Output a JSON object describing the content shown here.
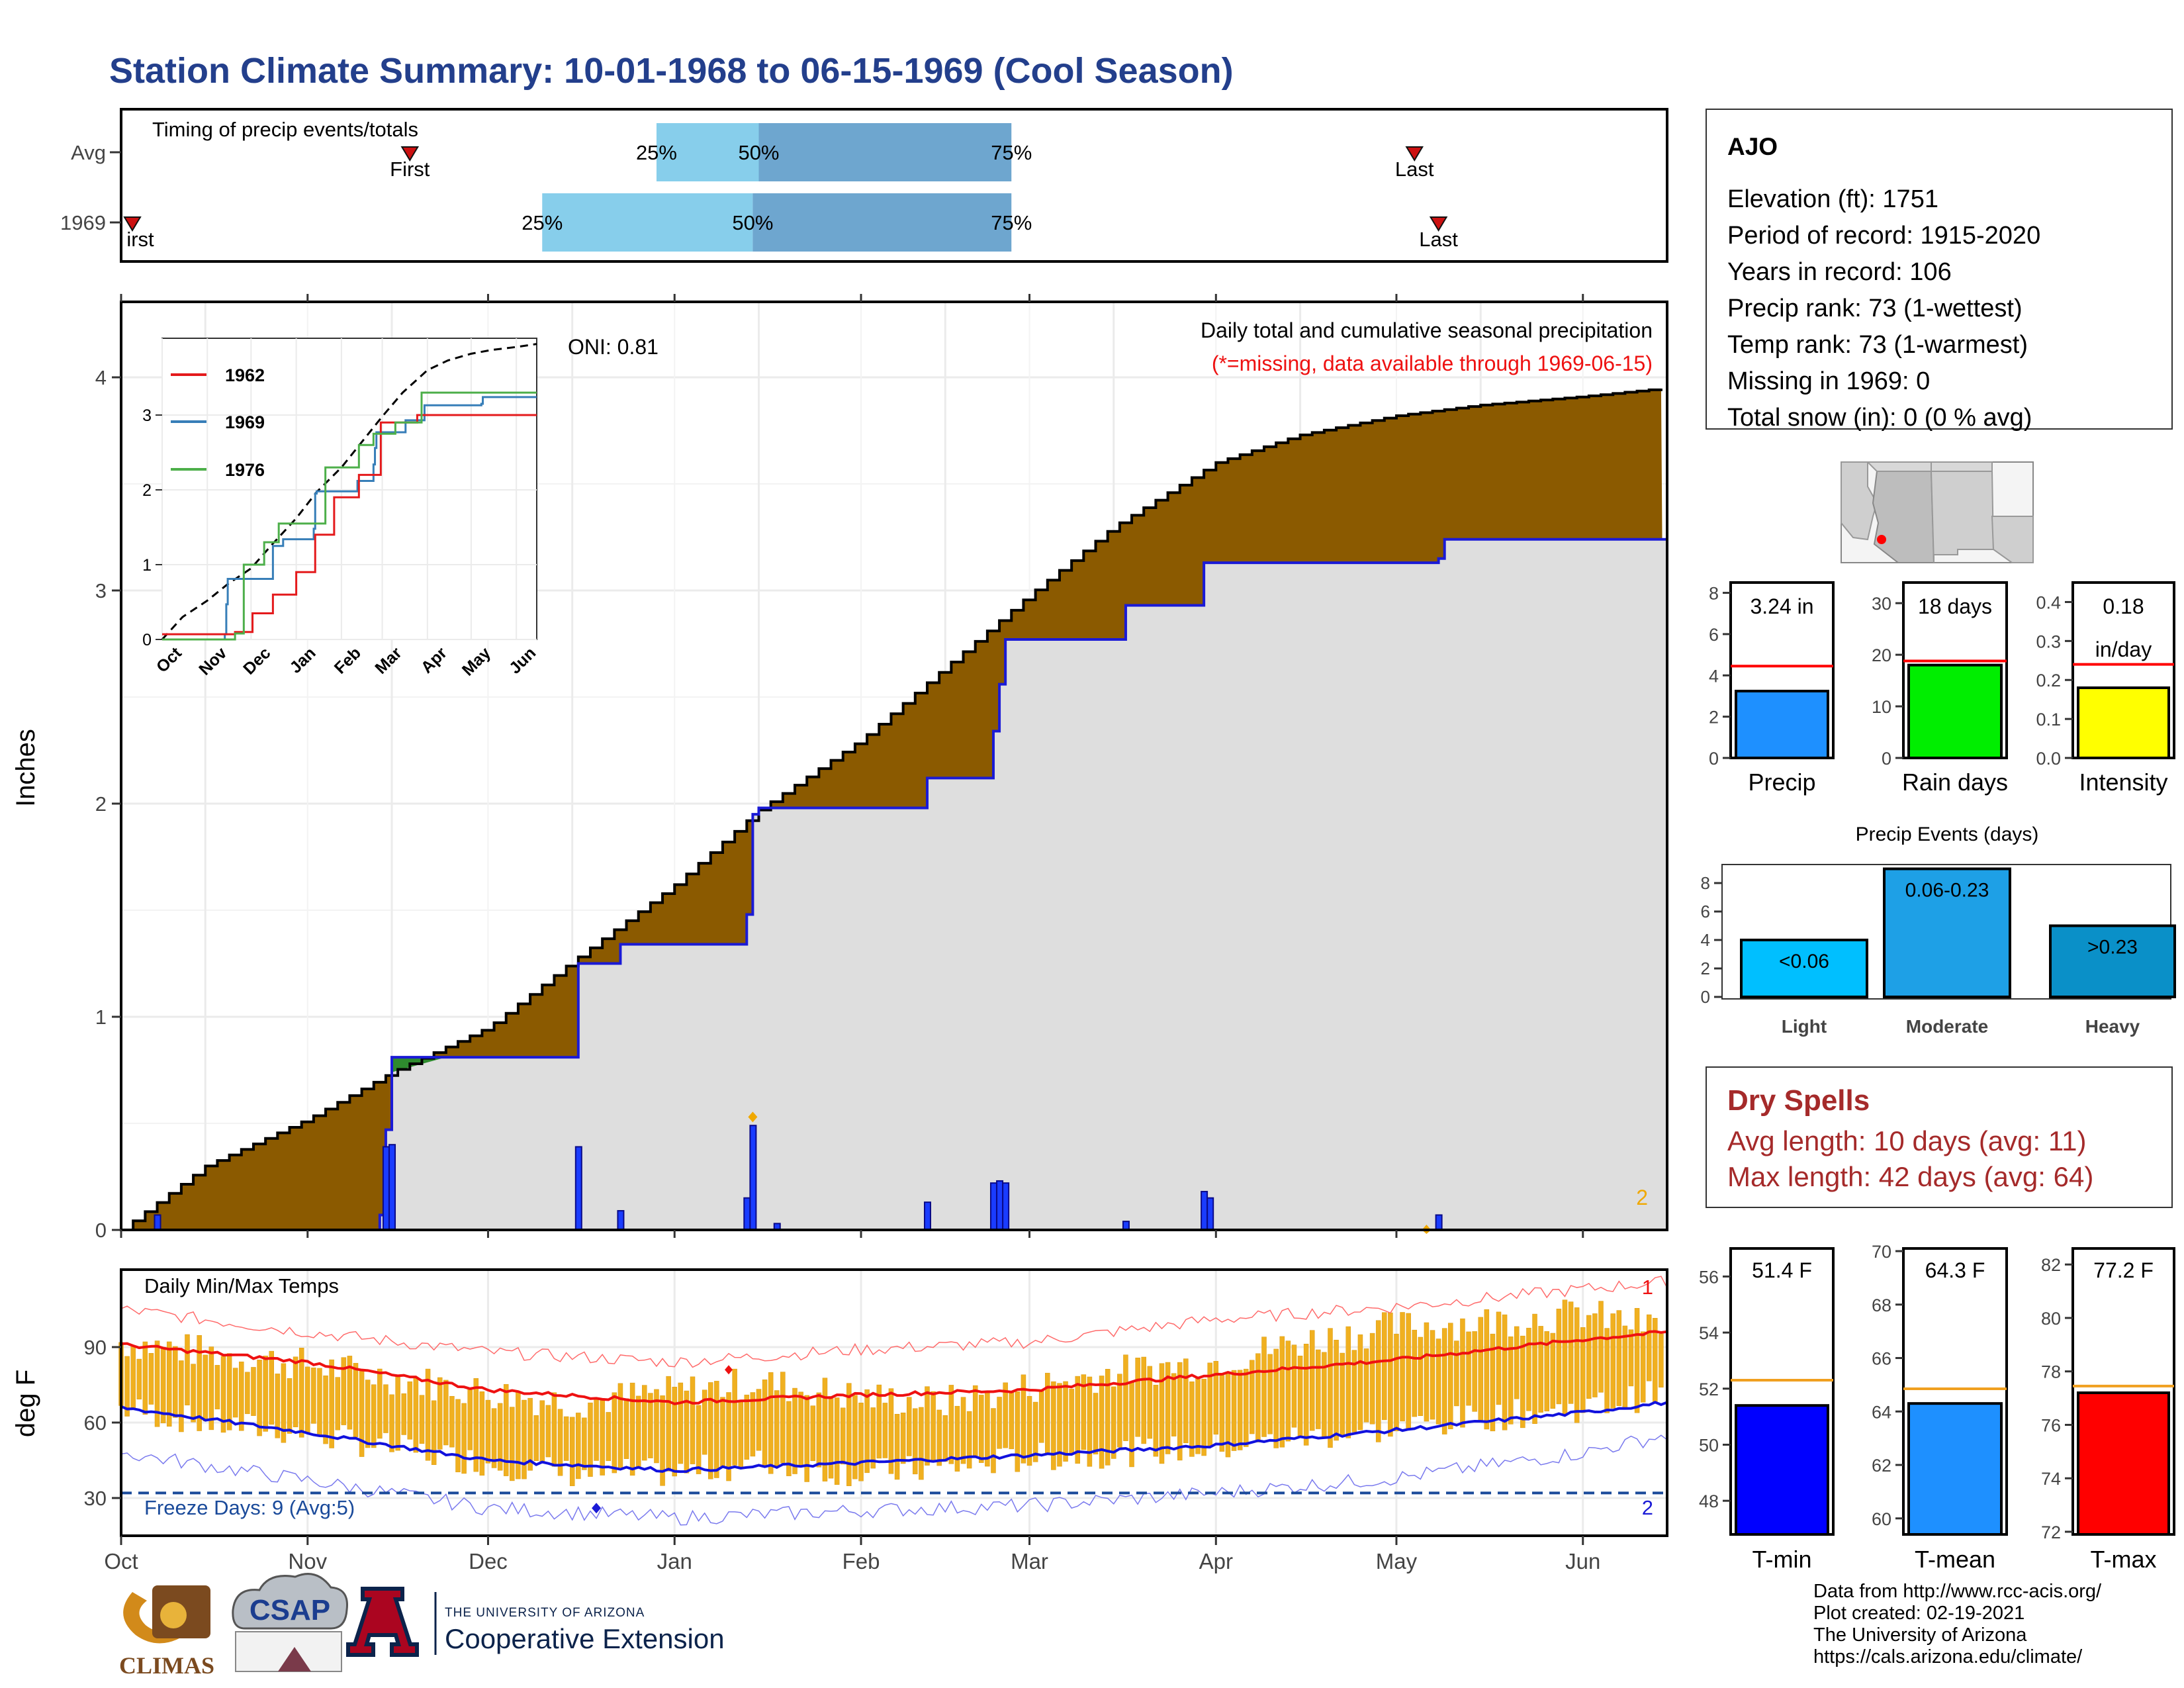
{
  "title": "Station Climate Summary: 10-01-1968 to 06-15-1969 (Cool Season)",
  "colors": {
    "title": "#233f8c",
    "brown": "#8b5a00",
    "grey_fill": "#dedede",
    "blue_line": "#1a1ad6",
    "bar_blue": "#1a3cff",
    "light_blue": "#87ceeb",
    "steel_blue": "#6ea6cf",
    "orange": "#f0a800",
    "red": "#ee1111",
    "dry_red": "#a52a2a",
    "green": "#2e8b2e"
  },
  "timing": {
    "title": "Timing of precip events/totals",
    "rows": [
      {
        "label": "Avg",
        "first_date": "1968-11-18",
        "first_label": "First",
        "p25_date": "1968-12-29",
        "p50_date": "1969-01-15",
        "p75_date": "1969-02-26",
        "last_date": "1969-05-04",
        "last_label": "Last",
        "p25": "25%",
        "p50": "50%",
        "p75": "75%"
      },
      {
        "label": "1969",
        "first_date": "1968-10-01",
        "first_label": "irst",
        "p25_date": "1968-12-10",
        "p50_date": "1969-01-14",
        "p75_date": "1969-02-26",
        "last_date": "1969-05-08",
        "last_label": "Last",
        "p25": "25%",
        "p50": "50%",
        "p75": "75%"
      }
    ]
  },
  "info": {
    "station": "AJO",
    "lines": [
      "Elevation (ft): 1751",
      "Period of record: 1915-2020",
      "Years in record: 106",
      "Precip rank: 73 (1-wettest)",
      "Temp rank: 73 (1-warmest)",
      "Missing in 1969: 0",
      "Total snow (in): 0 (0 % avg)"
    ]
  },
  "precip_panel": {
    "ylabel": "Inches",
    "oni": "ONI: 0.81",
    "caption": "Daily total and cumulative seasonal precipitation",
    "missing_note": "(*=missing, data available through 1969-06-15)",
    "corner_count": "2",
    "y_ticks": [
      "0",
      "1",
      "2",
      "3",
      "4"
    ],
    "x_ticks": [
      "Oct",
      "Nov",
      "Dec",
      "Jan",
      "Feb",
      "Mar",
      "Apr",
      "May",
      "Jun"
    ]
  },
  "inset": {
    "legend": [
      "1962",
      "1969",
      "1976"
    ],
    "y_ticks": [
      "0",
      "1",
      "2",
      "3"
    ],
    "x_ticks": [
      "Oct",
      "Nov",
      "Dec",
      "Jan",
      "Feb",
      "Mar",
      "Apr",
      "May",
      "Jun"
    ]
  },
  "mini_bars": [
    {
      "label": "Precip",
      "value_text": "3.24 in",
      "value": 3.24,
      "avg": 4.45,
      "max": 8.5,
      "ticks": [
        "0",
        "2",
        "4",
        "6",
        "8"
      ],
      "color": "#1e90ff"
    },
    {
      "label": "Rain days",
      "value_text": "18 days",
      "value": 18,
      "avg": 18.8,
      "max": 34,
      "ticks": [
        "0",
        "10",
        "20",
        "30"
      ],
      "color": "#00ee00"
    },
    {
      "label": "Intensity",
      "value_text": "0.18",
      "value_text2": "in/day",
      "value": 0.18,
      "avg": 0.24,
      "max": 0.45,
      "ticks": [
        "0.0",
        "0.1",
        "0.2",
        "0.3",
        "0.4"
      ],
      "color": "#ffff00"
    }
  ],
  "events": {
    "title": "Precip Events (days)",
    "ticks": [
      "0",
      "2",
      "4",
      "6",
      "8"
    ],
    "bars": [
      {
        "category": "Light",
        "label": "<0.06",
        "value": 4,
        "color": "#00bfff"
      },
      {
        "category": "Moderate",
        "label": "0.06-0.23",
        "value": 9,
        "color": "#1ea0e6"
      },
      {
        "category": "Heavy",
        "label": ">0.23",
        "value": 5,
        "color": "#0a90c8"
      }
    ]
  },
  "dry_spells": {
    "title": "Dry Spells",
    "avg_line": "Avg length: 10 days (avg: 11)",
    "max_line": "Max length: 42 days (avg: 64)"
  },
  "temp_panel": {
    "title": "Daily Min/Max Temps",
    "ylabel": "deg F",
    "y_ticks": [
      "30",
      "60",
      "90"
    ],
    "freeze_label": "Freeze Days: 9 (Avg:5)",
    "count_top": "1",
    "count_bottom": "2",
    "x_ticks": [
      "Oct",
      "Nov",
      "Dec",
      "Jan",
      "Feb",
      "Mar",
      "Apr",
      "May",
      "Jun"
    ]
  },
  "temp_bars": [
    {
      "label": "T-min",
      "value_text": "51.4 F",
      "value": 51.4,
      "avg": 52.3,
      "min": 46.8,
      "max": 57.0,
      "ticks": [
        "48",
        "50",
        "52",
        "54",
        "56"
      ],
      "color": "#0000ff"
    },
    {
      "label": "T-mean",
      "value_text": "64.3 F",
      "value": 64.3,
      "avg": 64.85,
      "min": 59.4,
      "max": 70.1,
      "ticks": [
        "60",
        "62",
        "64",
        "66",
        "68",
        "70"
      ],
      "color": "#1e90ff"
    },
    {
      "label": "T-max",
      "value_text": "77.2 F",
      "value": 77.2,
      "avg": 77.45,
      "min": 71.9,
      "max": 82.6,
      "ticks": [
        "72",
        "74",
        "76",
        "78",
        "80",
        "82"
      ],
      "color": "#ff0000"
    }
  ],
  "chart_data": [
    {
      "type": "area",
      "title": "Daily total and cumulative seasonal precipitation",
      "ylabel": "Inches",
      "ylim": [
        0,
        4.3
      ],
      "series": [
        {
          "name": "1969",
          "x": [
            "1968-10-01",
            "1968-10-07",
            "1968-11-13",
            "1968-11-14",
            "1968-11-15",
            "1968-12-15",
            "1968-12-16",
            "1968-12-22",
            "1968-12-23",
            "1969-01-12",
            "1969-01-13",
            "1969-01-14",
            "1969-01-15",
            "1969-02-11",
            "1969-02-12",
            "1969-02-22",
            "1969-02-23",
            "1969-02-24",
            "1969-02-25",
            "1969-03-16",
            "1969-03-17",
            "1969-03-29",
            "1969-03-30",
            "1969-05-08",
            "1969-05-09",
            "1969-06-15"
          ],
          "values": [
            0.0,
            0.0,
            0.07,
            0.47,
            0.81,
            0.81,
            1.25,
            1.25,
            1.34,
            1.34,
            1.48,
            1.95,
            1.98,
            1.98,
            2.12,
            2.12,
            2.34,
            2.56,
            2.77,
            2.77,
            2.93,
            2.93,
            3.13,
            3.15,
            3.24,
            3.24
          ]
        },
        {
          "name": "Avg",
          "x": [
            "1968-10-01",
            "1968-10-15",
            "1968-11-01",
            "1968-11-15",
            "1968-12-01",
            "1968-12-15",
            "1969-01-01",
            "1969-01-15",
            "1969-02-01",
            "1969-02-15",
            "1969-03-01",
            "1969-03-15",
            "1969-04-01",
            "1969-04-15",
            "1969-05-01",
            "1969-05-15",
            "1969-06-01",
            "1969-06-15"
          ],
          "values": [
            0.0,
            0.3,
            0.52,
            0.74,
            0.95,
            1.26,
            1.62,
            1.97,
            2.3,
            2.64,
            2.98,
            3.3,
            3.6,
            3.73,
            3.82,
            3.87,
            3.91,
            3.95
          ]
        }
      ],
      "daily_bars": [
        {
          "date": "1968-10-07",
          "value": 0.07
        },
        {
          "date": "1968-11-14",
          "value": 0.39
        },
        {
          "date": "1968-11-15",
          "value": 0.4
        },
        {
          "date": "1968-12-16",
          "value": 0.39
        },
        {
          "date": "1968-12-23",
          "value": 0.09
        },
        {
          "date": "1969-01-13",
          "value": 0.15
        },
        {
          "date": "1969-01-14",
          "value": 0.49
        },
        {
          "date": "1969-01-18",
          "value": 0.03
        },
        {
          "date": "1969-02-12",
          "value": 0.13
        },
        {
          "date": "1969-02-23",
          "value": 0.22
        },
        {
          "date": "1969-02-24",
          "value": 0.23
        },
        {
          "date": "1969-02-25",
          "value": 0.22
        },
        {
          "date": "1969-03-17",
          "value": 0.04
        },
        {
          "date": "1969-03-30",
          "value": 0.18
        },
        {
          "date": "1969-03-31",
          "value": 0.15
        },
        {
          "date": "1969-05-08",
          "value": 0.07
        }
      ],
      "oni": 0.81
    },
    {
      "type": "line",
      "title": "Daily Min/Max Temps",
      "ylabel": "deg F",
      "ylim": [
        15,
        118
      ],
      "freeze_line": 32,
      "avg_max": {
        "x": [
          "1968-10-01",
          "1968-11-01",
          "1968-12-01",
          "1969-01-01",
          "1969-02-01",
          "1969-03-01",
          "1969-04-01",
          "1969-05-01",
          "1969-06-01",
          "1969-06-15"
        ],
        "values": [
          91,
          84,
          73,
          68,
          71,
          73,
          79,
          85,
          93,
          96
        ]
      },
      "avg_min": {
        "x": [
          "1968-10-01",
          "1968-11-01",
          "1968-12-01",
          "1969-01-01",
          "1969-02-01",
          "1969-03-01",
          "1969-04-01",
          "1969-05-01",
          "1969-06-01",
          "1969-06-15"
        ],
        "values": [
          66,
          56,
          45,
          41,
          44,
          47,
          51,
          57,
          64,
          68
        ]
      },
      "record_max": {
        "x": [
          "1968-10-01",
          "1968-11-01",
          "1968-12-01",
          "1969-01-01",
          "1969-02-01",
          "1969-03-01",
          "1969-04-01",
          "1969-05-01",
          "1969-06-01",
          "1969-06-15"
        ],
        "values": [
          105,
          96,
          88,
          84,
          89,
          92,
          101,
          106,
          113,
          116
        ]
      },
      "record_min": {
        "x": [
          "1968-10-01",
          "1968-11-01",
          "1968-12-01",
          "1969-01-01",
          "1969-02-01",
          "1969-03-01",
          "1969-04-01",
          "1969-05-01",
          "1969-06-01",
          "1969-06-15"
        ],
        "values": [
          48,
          37,
          26,
          22,
          25,
          27,
          32,
          38,
          48,
          55
        ]
      },
      "daily_range_1969": {
        "x": [
          "1968-10-01",
          "1968-10-15",
          "1968-11-01",
          "1968-11-15",
          "1968-12-01",
          "1968-12-15",
          "1969-01-01",
          "1969-01-15",
          "1969-02-01",
          "1969-02-15",
          "1969-03-01",
          "1969-03-15",
          "1969-04-01",
          "1969-04-15",
          "1969-05-01",
          "1969-05-15",
          "1969-06-01",
          "1969-06-15"
        ],
        "max": [
          92,
          88,
          83,
          78,
          72,
          68,
          72,
          76,
          70,
          68,
          74,
          80,
          84,
          92,
          98,
          100,
          103,
          97
        ],
        "min": [
          66,
          60,
          56,
          50,
          44,
          40,
          40,
          44,
          40,
          42,
          46,
          48,
          50,
          54,
          58,
          62,
          66,
          72
        ]
      }
    }
  ]
}
